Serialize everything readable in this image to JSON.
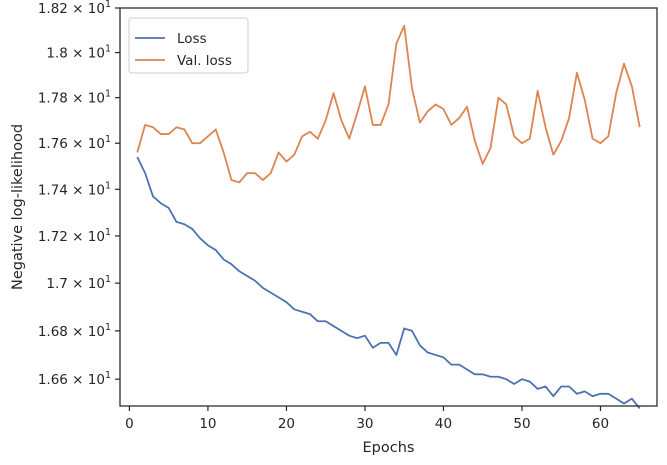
{
  "chart_data": {
    "type": "line",
    "title": "",
    "xlabel": "Epochs",
    "ylabel": "Negative log-likelihood",
    "xlim": [
      -1.2,
      67.2
    ],
    "ylim": [
      16.49,
      18.2
    ],
    "y_scale": "log",
    "grid": false,
    "legend_position": "top-left",
    "x_ticks": [
      0,
      10,
      20,
      30,
      40,
      50,
      60
    ],
    "x_tick_labels": [
      "0",
      "10",
      "20",
      "30",
      "40",
      "50",
      "60"
    ],
    "y_ticks": [
      16.6,
      16.8,
      17.0,
      17.2,
      17.4,
      17.6,
      17.8,
      18.0,
      18.2
    ],
    "y_tick_labels": [
      {
        "mantissa": "1.66",
        "base": "10",
        "exp": "1"
      },
      {
        "mantissa": "1.68",
        "base": "10",
        "exp": "1"
      },
      {
        "mantissa": "1.7",
        "base": "10",
        "exp": "1"
      },
      {
        "mantissa": "1.72",
        "base": "10",
        "exp": "1"
      },
      {
        "mantissa": "1.74",
        "base": "10",
        "exp": "1"
      },
      {
        "mantissa": "1.76",
        "base": "10",
        "exp": "1"
      },
      {
        "mantissa": "1.78",
        "base": "10",
        "exp": "1"
      },
      {
        "mantissa": "1.8",
        "base": "10",
        "exp": "1"
      },
      {
        "mantissa": "1.82",
        "base": "10",
        "exp": "1"
      }
    ],
    "x": [
      1,
      2,
      3,
      4,
      5,
      6,
      7,
      8,
      9,
      10,
      11,
      12,
      13,
      14,
      15,
      16,
      17,
      18,
      19,
      20,
      21,
      22,
      23,
      24,
      25,
      26,
      27,
      28,
      29,
      30,
      31,
      32,
      33,
      34,
      35,
      36,
      37,
      38,
      39,
      40,
      41,
      42,
      43,
      44,
      45,
      46,
      47,
      48,
      49,
      50,
      51,
      52,
      53,
      54,
      55,
      56,
      57,
      58,
      59,
      60,
      61,
      62,
      63,
      64,
      65
    ],
    "series": [
      {
        "name": "Loss",
        "color": "#4c72b0",
        "values": [
          17.54,
          17.47,
          17.37,
          17.34,
          17.32,
          17.26,
          17.25,
          17.23,
          17.19,
          17.16,
          17.14,
          17.1,
          17.08,
          17.05,
          17.03,
          17.01,
          16.98,
          16.96,
          16.94,
          16.92,
          16.89,
          16.88,
          16.87,
          16.84,
          16.84,
          16.82,
          16.8,
          16.78,
          16.77,
          16.78,
          16.73,
          16.75,
          16.75,
          16.7,
          16.81,
          16.8,
          16.74,
          16.71,
          16.7,
          16.69,
          16.66,
          16.66,
          16.64,
          16.62,
          16.62,
          16.61,
          16.61,
          16.6,
          16.58,
          16.6,
          16.59,
          16.56,
          16.57,
          16.53,
          16.57,
          16.57,
          16.54,
          16.55,
          16.53,
          16.54,
          16.54,
          16.52,
          16.5,
          16.52,
          16.48
        ]
      },
      {
        "name": "Val. loss",
        "color": "#dd8452",
        "values": [
          17.56,
          17.68,
          17.67,
          17.64,
          17.64,
          17.67,
          17.66,
          17.6,
          17.6,
          17.63,
          17.66,
          17.56,
          17.44,
          17.43,
          17.47,
          17.47,
          17.44,
          17.47,
          17.56,
          17.52,
          17.55,
          17.63,
          17.65,
          17.62,
          17.7,
          17.82,
          17.7,
          17.62,
          17.73,
          17.85,
          17.68,
          17.68,
          17.77,
          18.04,
          18.12,
          17.84,
          17.69,
          17.74,
          17.77,
          17.75,
          17.68,
          17.71,
          17.76,
          17.61,
          17.51,
          17.58,
          17.8,
          17.77,
          17.63,
          17.6,
          17.62,
          17.83,
          17.67,
          17.55,
          17.61,
          17.71,
          17.91,
          17.79,
          17.62,
          17.6,
          17.63,
          17.82,
          17.95,
          17.85,
          17.67
        ]
      }
    ]
  }
}
